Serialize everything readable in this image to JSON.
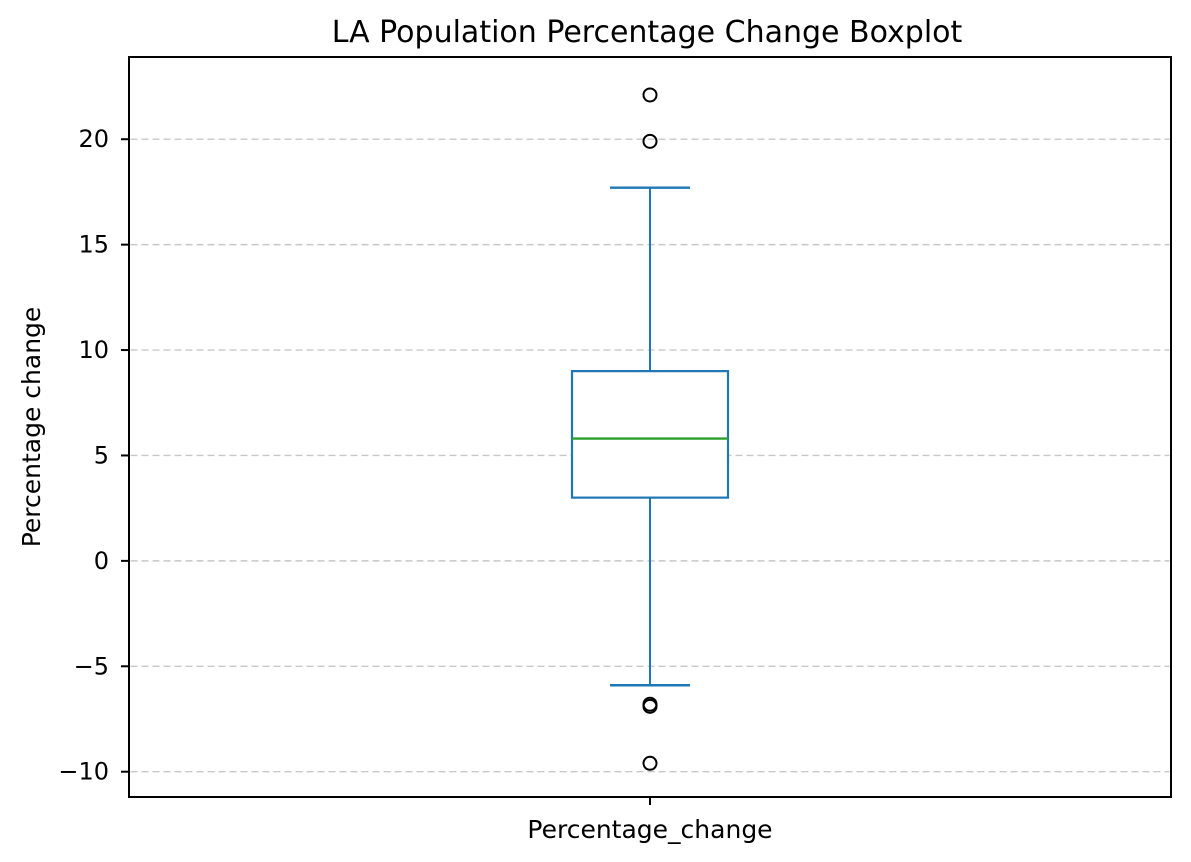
{
  "chart_data": {
    "type": "boxplot",
    "title": "LA Population Percentage Change Boxplot",
    "ylabel": "Percentage change",
    "xlabel": "",
    "xtick_label": "Percentage_change",
    "yticks": [
      20,
      15,
      10,
      5,
      0,
      -5,
      -10
    ],
    "ylim": [
      -11.2,
      23.9
    ],
    "grid": "horizontal-dashed",
    "legend": "none",
    "series": [
      {
        "name": "Percentage_change",
        "q1": 3.0,
        "median": 5.8,
        "q3": 9.0,
        "whisker_low": -5.9,
        "whisker_high": 17.7,
        "outliers": [
          22.1,
          19.9,
          -6.8,
          -6.9,
          -9.6
        ]
      }
    ],
    "colors": {
      "box": "#1f77b4",
      "median": "#2ca02c",
      "outlier_edge": "#000000",
      "grid": "#c8c8c8",
      "spine": "#000000",
      "background": "#ffffff"
    }
  }
}
